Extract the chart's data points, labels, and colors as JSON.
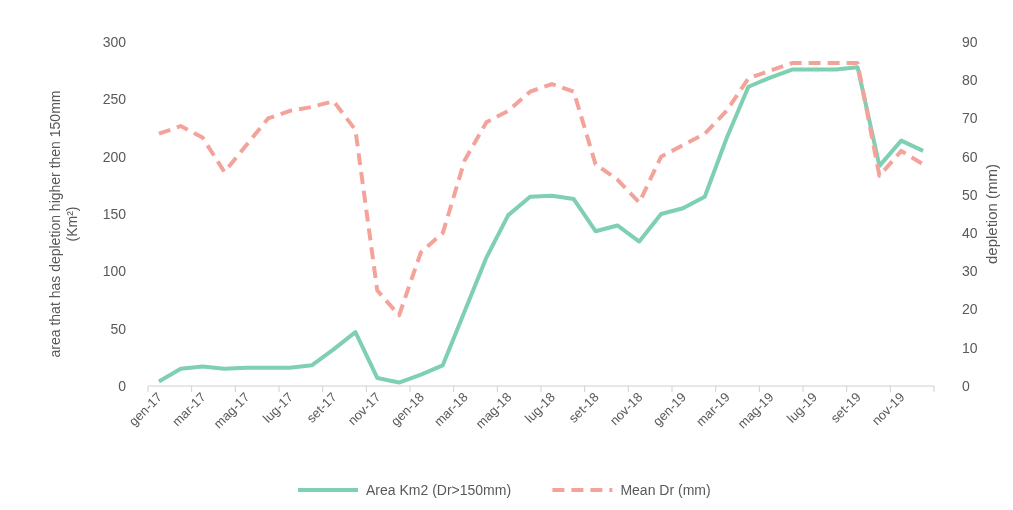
{
  "chart_data": {
    "type": "line",
    "categories": [
      "gen-17",
      null,
      "mar-17",
      null,
      "mag-17",
      null,
      "lug-17",
      null,
      "set-17",
      null,
      "nov-17",
      null,
      "gen-18",
      null,
      "mar-18",
      null,
      "mag-18",
      null,
      "lug-18",
      null,
      "set-18",
      null,
      "nov-18",
      null,
      "gen-19",
      null,
      "mar-19",
      null,
      "mag-19",
      null,
      "lug-19",
      null,
      "set-19",
      null,
      "nov-19",
      null
    ],
    "ylabel": "area that has depletion higher then 150mm (Km²)",
    "y2label": "depletion (mm)",
    "ylim": [
      0,
      300
    ],
    "yticks": [
      0,
      50,
      100,
      150,
      200,
      250,
      300
    ],
    "y2lim": [
      0,
      90
    ],
    "y2ticks": [
      0,
      10,
      20,
      30,
      40,
      50,
      60,
      70,
      80,
      90
    ],
    "legend": "bottom",
    "grid": false,
    "series": [
      {
        "name": "Area Km2 (Dr>150mm)",
        "color": "#7fcfb2",
        "line_style": "solid",
        "values": [
          4,
          15,
          17,
          15,
          16,
          16,
          16,
          18,
          32,
          47,
          7,
          3,
          10,
          18,
          65,
          112,
          149,
          165,
          166,
          163,
          135,
          140,
          126,
          150,
          155,
          165,
          216,
          261,
          269,
          276,
          276,
          276,
          278,
          192,
          214,
          205
        ]
      },
      {
        "name": "Mean Dr (mm)",
        "color": "#f4a39b",
        "line_style": "dashed",
        "axis": "y2",
        "values": [
          66,
          68,
          65,
          56,
          63,
          70,
          72,
          73,
          74.5,
          67,
          25,
          18.5,
          35,
          40,
          59,
          69,
          72,
          77,
          79,
          77,
          58,
          54,
          48,
          60,
          63,
          66,
          72,
          80.5,
          82.5,
          84.5,
          84.5,
          84.5,
          84.5,
          55,
          61.5,
          58
        ]
      }
    ]
  }
}
